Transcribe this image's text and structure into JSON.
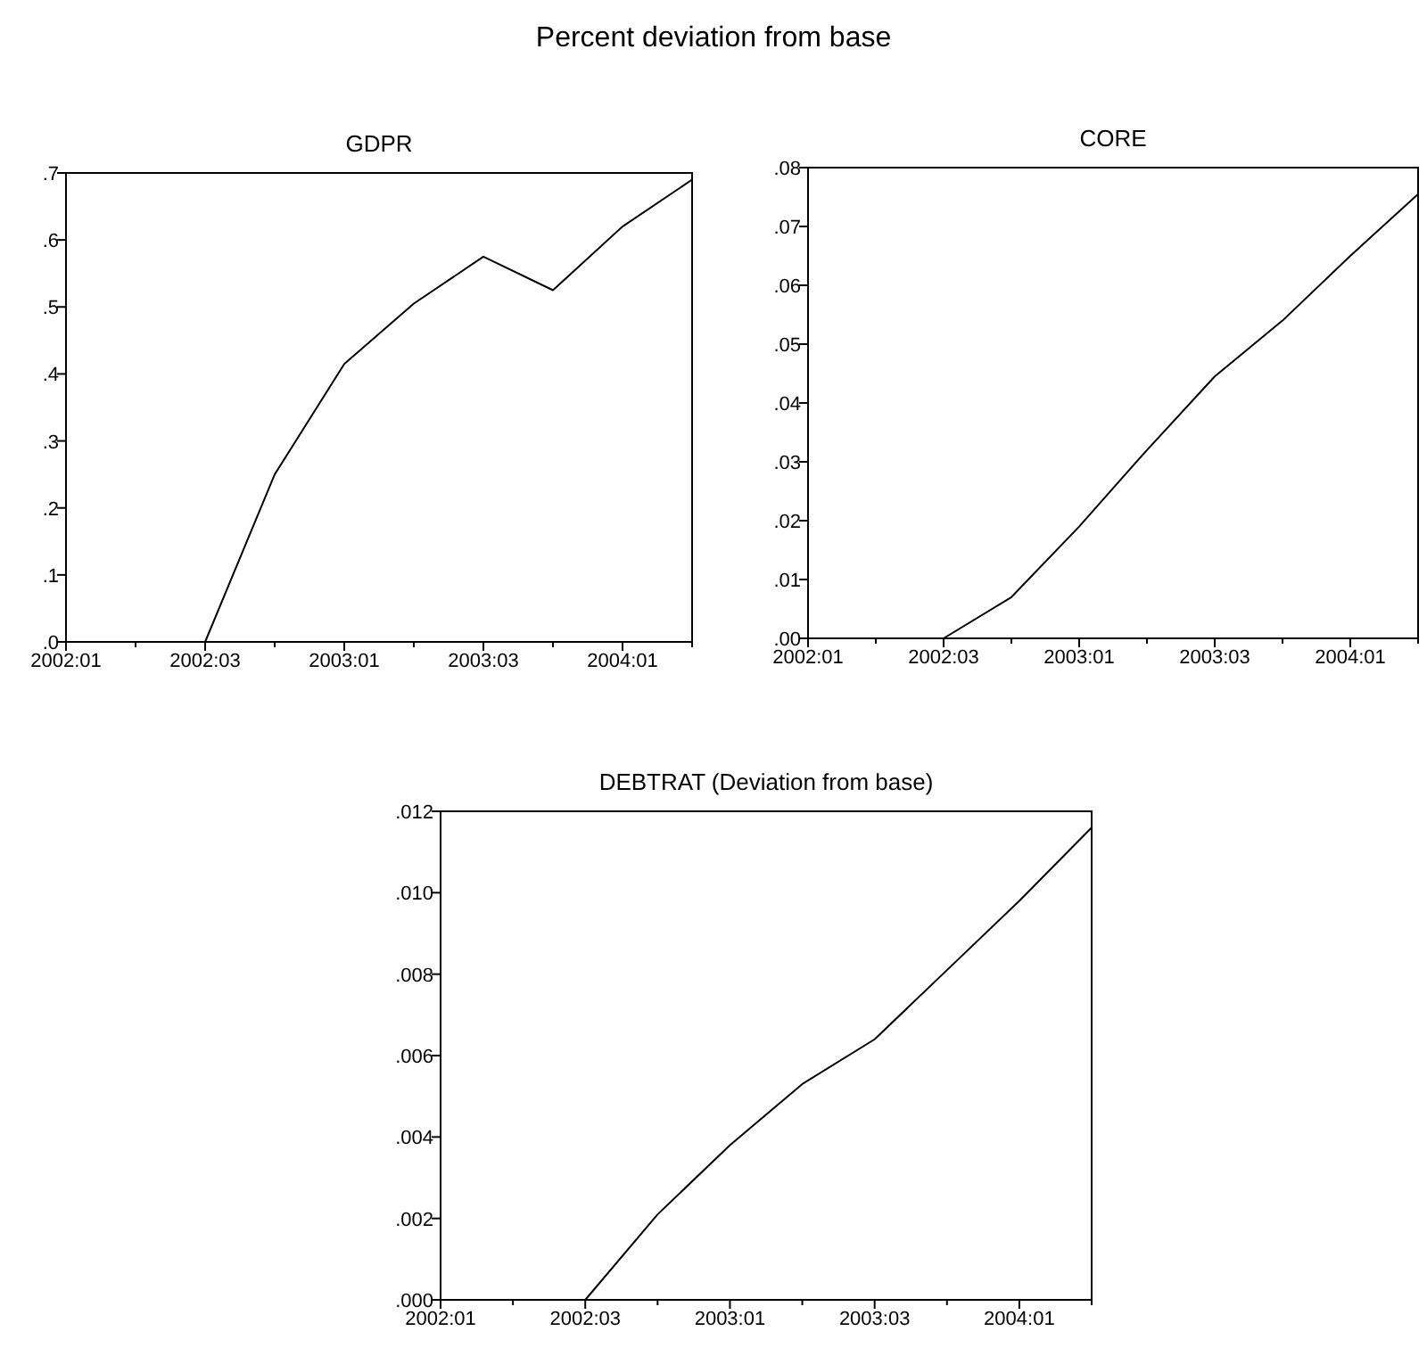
{
  "chart_data": [
    {
      "type": "line",
      "title": "GDPR",
      "annotations": [
        "Percent deviation from base"
      ],
      "categories": [
        "2002:01",
        null,
        "2002:03",
        null,
        "2003:01",
        null,
        "2003:03",
        null,
        "2004:01",
        null
      ],
      "series": [
        {
          "color": "#000000",
          "values": [
            0,
            0,
            0,
            0.25,
            0.415,
            0.505,
            0.575,
            0.525,
            0.62,
            0.69
          ]
        }
      ],
      "ylim": [
        0,
        0.7
      ],
      "yticks": [
        {
          "value": 0,
          "label": ".0"
        },
        {
          "value": 0.1,
          "label": ".1"
        },
        {
          "value": 0.2,
          "label": ".2"
        },
        {
          "value": 0.3,
          "label": ".3"
        },
        {
          "value": 0.4,
          "label": ".4"
        },
        {
          "value": 0.5,
          "label": ".5"
        },
        {
          "value": 0.6,
          "label": ".6"
        },
        {
          "value": 0.7,
          "label": ".7"
        }
      ]
    },
    {
      "type": "line",
      "title": "CORE",
      "categories": [
        "2002:01",
        null,
        "2002:03",
        null,
        "2003:01",
        null,
        "2003:03",
        null,
        "2004:01",
        null
      ],
      "series": [
        {
          "color": "#000000",
          "values": [
            0,
            0,
            0,
            0.007,
            0.019,
            0.032,
            0.0445,
            0.054,
            0.065,
            0.0755
          ]
        }
      ],
      "ylim": [
        0,
        0.08
      ],
      "yticks": [
        {
          "value": 0,
          "label": ".00"
        },
        {
          "value": 0.01,
          "label": ".01"
        },
        {
          "value": 0.02,
          "label": ".02"
        },
        {
          "value": 0.03,
          "label": ".03"
        },
        {
          "value": 0.04,
          "label": ".04"
        },
        {
          "value": 0.05,
          "label": ".05"
        },
        {
          "value": 0.06,
          "label": ".06"
        },
        {
          "value": 0.07,
          "label": ".07"
        },
        {
          "value": 0.08,
          "label": ".08"
        }
      ]
    },
    {
      "type": "line",
      "title": "DEBTRAT (Deviation from base)",
      "categories": [
        "2002:01",
        null,
        "2002:03",
        null,
        "2003:01",
        null,
        "2003:03",
        null,
        "2004:01",
        null
      ],
      "series": [
        {
          "color": "#000000",
          "values": [
            0,
            0,
            0,
            0.0021,
            0.0038,
            0.0053,
            0.0064,
            0.0081,
            0.0098,
            0.0116
          ]
        }
      ],
      "ylim": [
        0,
        0.012
      ],
      "yticks": [
        {
          "value": 0,
          "label": ".000"
        },
        {
          "value": 0.002,
          "label": ".002"
        },
        {
          "value": 0.004,
          "label": ".004"
        },
        {
          "value": 0.006,
          "label": ".006"
        },
        {
          "value": 0.008,
          "label": ".008"
        },
        {
          "value": 0.01,
          "label": ".010"
        },
        {
          "value": 0.012,
          "label": ".012"
        }
      ]
    }
  ]
}
